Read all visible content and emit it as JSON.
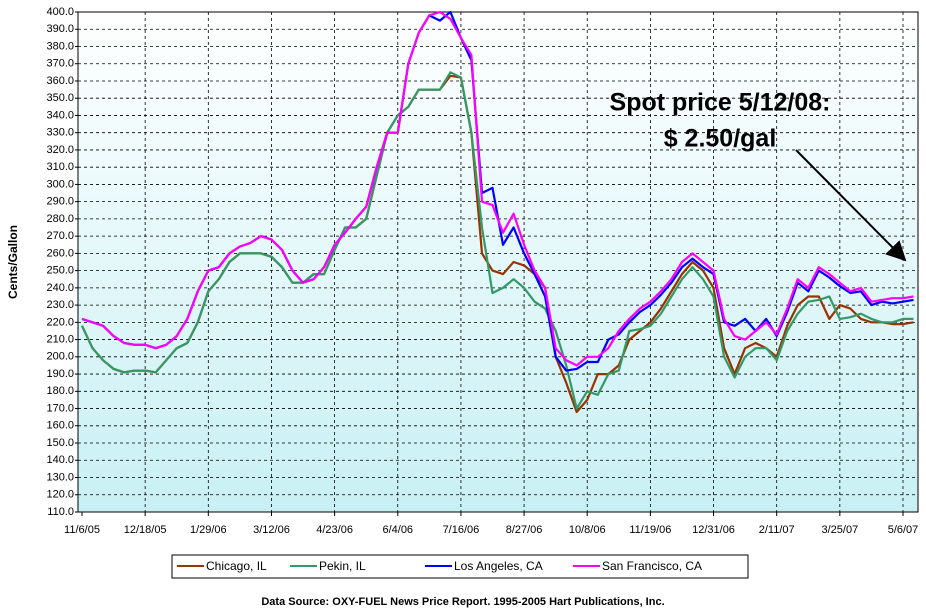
{
  "chart_data": {
    "type": "line",
    "ylabel": "Cents/Gallon",
    "annotation": [
      "Spot price 5/12/08:",
      "$ 2.50/gal"
    ],
    "source": "Data Source: OXY-FUEL News Price Report. 1995-2005 Hart Publications, Inc.",
    "categories": [
      "11/6/05",
      null,
      null,
      null,
      null,
      null,
      "12/18/05",
      null,
      null,
      null,
      null,
      null,
      "1/29/06",
      null,
      null,
      null,
      null,
      null,
      "3/12/06",
      null,
      null,
      null,
      null,
      null,
      "4/23/06",
      null,
      null,
      null,
      null,
      null,
      "6/4/06",
      null,
      null,
      null,
      null,
      null,
      "7/16/06",
      null,
      null,
      null,
      null,
      null,
      "8/27/06",
      null,
      null,
      null,
      null,
      null,
      "10/8/06",
      null,
      null,
      null,
      null,
      null,
      "11/19/06",
      null,
      null,
      null,
      null,
      null,
      "12/31/06",
      null,
      null,
      null,
      null,
      null,
      "2/11/07",
      null,
      null,
      null,
      null,
      null,
      "3/25/07",
      null,
      null,
      null,
      null,
      null,
      "5/6/07",
      null
    ],
    "series": [
      {
        "name": "Chicago, IL",
        "color": "#993300",
        "values": [
          218,
          205,
          198,
          193,
          191,
          192,
          192,
          191,
          198,
          205,
          208,
          220,
          238,
          245,
          255,
          260,
          260,
          260,
          258,
          252,
          243,
          243,
          248,
          248,
          262,
          275,
          275,
          280,
          305,
          330,
          340,
          345,
          355,
          355,
          355,
          363,
          362,
          330,
          260,
          250,
          248,
          255,
          253,
          248,
          240,
          200,
          185,
          168,
          175,
          190,
          190,
          195,
          210,
          215,
          220,
          228,
          238,
          248,
          255,
          250,
          240,
          205,
          190,
          205,
          208,
          205,
          200,
          218,
          230,
          235,
          235,
          222,
          230,
          228,
          222,
          220,
          220,
          219,
          219,
          220
        ]
      },
      {
        "name": "Pekin, IL",
        "color": "#339966",
        "values": [
          218,
          205,
          198,
          193,
          191,
          192,
          192,
          191,
          198,
          205,
          208,
          220,
          238,
          245,
          255,
          260,
          260,
          260,
          258,
          252,
          243,
          243,
          248,
          248,
          262,
          275,
          275,
          280,
          305,
          330,
          340,
          345,
          355,
          355,
          355,
          365,
          362,
          330,
          275,
          237,
          240,
          245,
          240,
          232,
          228,
          215,
          195,
          170,
          180,
          178,
          190,
          192,
          215,
          216,
          218,
          225,
          235,
          245,
          252,
          245,
          235,
          200,
          188,
          200,
          205,
          205,
          198,
          215,
          225,
          232,
          233,
          235,
          222,
          223,
          225,
          222,
          220,
          220,
          222,
          222
        ]
      },
      {
        "name": "Los Angeles, CA",
        "color": "#0000ff",
        "values": [
          222,
          220,
          218,
          212,
          208,
          207,
          207,
          205,
          207,
          212,
          222,
          238,
          250,
          252,
          260,
          264,
          266,
          270,
          268,
          262,
          250,
          243,
          245,
          252,
          265,
          272,
          280,
          287,
          310,
          330,
          330,
          370,
          388,
          398,
          395,
          400,
          385,
          372,
          295,
          298,
          265,
          275,
          260,
          248,
          235,
          200,
          192,
          193,
          197,
          197,
          210,
          213,
          220,
          226,
          230,
          236,
          243,
          252,
          257,
          252,
          248,
          220,
          218,
          222,
          215,
          222,
          212,
          226,
          243,
          238,
          250,
          246,
          241,
          237,
          238,
          230,
          232,
          231,
          232,
          233
        ]
      },
      {
        "name": "San Francisco, CA",
        "color": "#ff00ff",
        "values": [
          222,
          220,
          218,
          212,
          208,
          207,
          207,
          205,
          207,
          212,
          222,
          238,
          250,
          252,
          260,
          264,
          266,
          270,
          268,
          262,
          250,
          243,
          245,
          252,
          265,
          272,
          280,
          287,
          310,
          330,
          330,
          370,
          388,
          398,
          400,
          396,
          385,
          375,
          290,
          288,
          272,
          283,
          265,
          250,
          240,
          205,
          198,
          195,
          200,
          200,
          205,
          215,
          222,
          228,
          232,
          238,
          245,
          255,
          260,
          255,
          250,
          222,
          212,
          210,
          215,
          220,
          213,
          228,
          245,
          240,
          252,
          248,
          243,
          238,
          240,
          232,
          233,
          234,
          234,
          235
        ]
      }
    ],
    "ylim": [
      110,
      400
    ],
    "yticks": [
      {
        "value": 110,
        "label": "110.0"
      },
      {
        "value": 120,
        "label": "120.0"
      },
      {
        "value": 130,
        "label": "130.0"
      },
      {
        "value": 140,
        "label": "140.0"
      },
      {
        "value": 150,
        "label": "150.0"
      },
      {
        "value": 160,
        "label": "160.0"
      },
      {
        "value": 170,
        "label": "170.0"
      },
      {
        "value": 180,
        "label": "180.0"
      },
      {
        "value": 190,
        "label": "190.0"
      },
      {
        "value": 200,
        "label": "200.0"
      },
      {
        "value": 210,
        "label": "210.0"
      },
      {
        "value": 220,
        "label": "220.0"
      },
      {
        "value": 230,
        "label": "230.0"
      },
      {
        "value": 240,
        "label": "240.0"
      },
      {
        "value": 250,
        "label": "250.0"
      },
      {
        "value": 260,
        "label": "260.0"
      },
      {
        "value": 270,
        "label": "270.0"
      },
      {
        "value": 280,
        "label": "280.0"
      },
      {
        "value": 290,
        "label": "290.0"
      },
      {
        "value": 300,
        "label": "300.0"
      },
      {
        "value": 310,
        "label": "310.0"
      },
      {
        "value": 320,
        "label": "320.0"
      },
      {
        "value": 330,
        "label": "330.0"
      },
      {
        "value": 340,
        "label": "340.0"
      },
      {
        "value": 350,
        "label": "350.0"
      },
      {
        "value": 360,
        "label": "360.0"
      },
      {
        "value": 370,
        "label": "370.0"
      },
      {
        "value": 380,
        "label": "380.0"
      },
      {
        "value": 390,
        "label": "390.0"
      },
      {
        "value": 400,
        "label": "400.0"
      }
    ],
    "grid": true,
    "legend": "bottom"
  }
}
